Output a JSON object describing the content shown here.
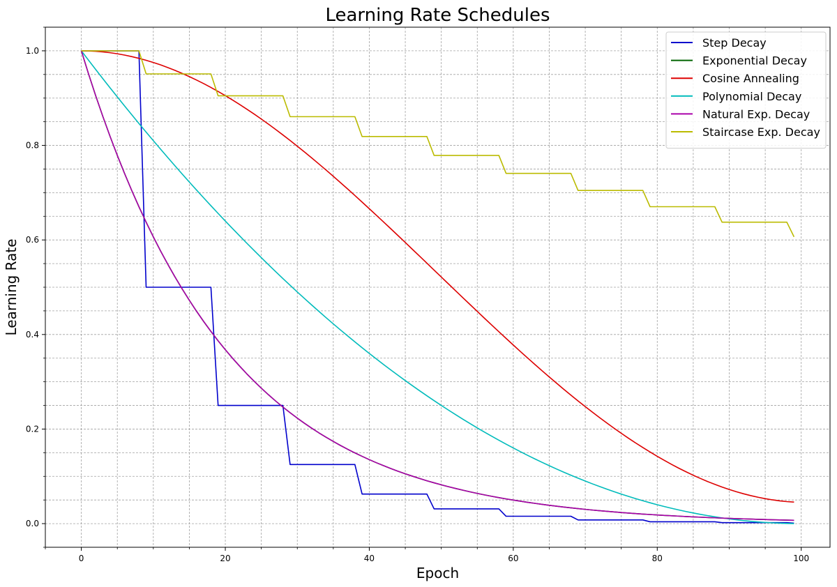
{
  "chart_data": {
    "type": "line",
    "title": "Learning Rate Schedules",
    "xlabel": "Epoch",
    "ylabel": "Learning Rate",
    "xlim": [
      -5,
      104
    ],
    "ylim": [
      -0.05,
      1.05
    ],
    "x_ticks": [
      0,
      20,
      40,
      60,
      80,
      100
    ],
    "y_ticks": [
      0.0,
      0.2,
      0.4,
      0.6,
      0.8,
      1.0
    ],
    "x_tick_labels": [
      "0",
      "20",
      "40",
      "60",
      "80",
      "100"
    ],
    "y_tick_labels": [
      "0.0",
      "0.2",
      "0.4",
      "0.6",
      "0.8",
      "1.0"
    ],
    "x_minor_step": 5,
    "y_minor_step": 0.05,
    "grid": true,
    "legend_position": "top-right",
    "x": [
      0,
      1,
      2,
      3,
      4,
      5,
      6,
      7,
      8,
      9,
      10,
      11,
      12,
      13,
      14,
      15,
      16,
      17,
      18,
      19,
      20,
      21,
      22,
      23,
      24,
      25,
      26,
      27,
      28,
      29,
      30,
      31,
      32,
      33,
      34,
      35,
      36,
      37,
      38,
      39,
      40,
      41,
      42,
      43,
      44,
      45,
      46,
      47,
      48,
      49,
      50,
      51,
      52,
      53,
      54,
      55,
      56,
      57,
      58,
      59,
      60,
      61,
      62,
      63,
      64,
      65,
      66,
      67,
      68,
      69,
      70,
      71,
      72,
      73,
      74,
      75,
      76,
      77,
      78,
      79,
      80,
      81,
      82,
      83,
      84,
      85,
      86,
      87,
      88,
      89,
      90,
      91,
      92,
      93,
      94,
      95,
      96,
      97,
      98,
      99
    ],
    "series": [
      {
        "name": "Step Decay",
        "color": "#0000cc",
        "values": [
          1.0,
          1.0,
          1.0,
          1.0,
          1.0,
          1.0,
          1.0,
          1.0,
          1.0,
          0.5,
          0.5,
          0.5,
          0.5,
          0.5,
          0.5,
          0.5,
          0.5,
          0.5,
          0.5,
          0.25,
          0.25,
          0.25,
          0.25,
          0.25,
          0.25,
          0.25,
          0.25,
          0.25,
          0.25,
          0.125,
          0.125,
          0.125,
          0.125,
          0.125,
          0.125,
          0.125,
          0.125,
          0.125,
          0.125,
          0.0625,
          0.0625,
          0.0625,
          0.0625,
          0.0625,
          0.0625,
          0.0625,
          0.0625,
          0.0625,
          0.0625,
          0.0312,
          0.0312,
          0.0312,
          0.0312,
          0.0312,
          0.0312,
          0.0312,
          0.0312,
          0.0312,
          0.0312,
          0.0156,
          0.0156,
          0.0156,
          0.0156,
          0.0156,
          0.0156,
          0.0156,
          0.0156,
          0.0156,
          0.0156,
          0.0078,
          0.0078,
          0.0078,
          0.0078,
          0.0078,
          0.0078,
          0.0078,
          0.0078,
          0.0078,
          0.0078,
          0.0039,
          0.0039,
          0.0039,
          0.0039,
          0.0039,
          0.0039,
          0.0039,
          0.0039,
          0.0039,
          0.0039,
          0.002,
          0.002,
          0.002,
          0.002,
          0.002,
          0.002,
          0.002,
          0.002,
          0.002,
          0.002,
          0.001
        ]
      },
      {
        "name": "Exponential Decay",
        "color": "#006400",
        "values": [
          1.0,
          0.9512,
          0.9048,
          0.8607,
          0.8187,
          0.7788,
          0.7408,
          0.7047,
          0.6703,
          0.6376,
          0.6065,
          0.5769,
          0.5488,
          0.522,
          0.4966,
          0.4724,
          0.4493,
          0.4274,
          0.4066,
          0.3867,
          0.3679,
          0.3499,
          0.3329,
          0.3166,
          0.3012,
          0.2865,
          0.2725,
          0.2592,
          0.2466,
          0.2346,
          0.2231,
          0.2122,
          0.2019,
          0.192,
          0.1827,
          0.1738,
          0.1653,
          0.1572,
          0.1496,
          0.1423,
          0.1353,
          0.1287,
          0.1225,
          0.1165,
          0.1108,
          0.1054,
          0.1003,
          0.0954,
          0.0907,
          0.0863,
          0.0821,
          0.0781,
          0.0743,
          0.0707,
          0.0672,
          0.0639,
          0.0608,
          0.0578,
          0.055,
          0.0523,
          0.0498,
          0.0474,
          0.045,
          0.0429,
          0.0408,
          0.0388,
          0.0369,
          0.0351,
          0.0334,
          0.0317,
          0.0302,
          0.0287,
          0.0273,
          0.026,
          0.0247,
          0.0235,
          0.0224,
          0.0213,
          0.0202,
          0.0193,
          0.0183,
          0.0174,
          0.0166,
          0.0158,
          0.015,
          0.0143,
          0.0136,
          0.0129,
          0.0123,
          0.0117,
          0.0111,
          0.0106,
          0.0101,
          0.0096,
          0.0091,
          0.0087,
          0.0082,
          0.0078,
          0.0074,
          0.0071
        ]
      },
      {
        "name": "Cosine Annealing",
        "color": "#dd0000",
        "values": [
          1.0,
          0.9998,
          0.999,
          0.9978,
          0.996,
          0.9938,
          0.991,
          0.9878,
          0.9841,
          0.98,
          0.9753,
          0.9703,
          0.9647,
          0.9587,
          0.9523,
          0.9455,
          0.9382,
          0.9306,
          0.9225,
          0.914,
          0.9052,
          0.896,
          0.8864,
          0.8765,
          0.8663,
          0.8557,
          0.8448,
          0.8336,
          0.8221,
          0.8104,
          0.7983,
          0.786,
          0.7735,
          0.7607,
          0.7478,
          0.7346,
          0.7212,
          0.7077,
          0.694,
          0.6801,
          0.6661,
          0.652,
          0.6378,
          0.6235,
          0.6091,
          0.5946,
          0.58,
          0.5655,
          0.5509,
          0.5362,
          0.5216,
          0.507,
          0.4924,
          0.4778,
          0.4633,
          0.4488,
          0.4344,
          0.4201,
          0.4059,
          0.3918,
          0.3778,
          0.3639,
          0.3502,
          0.3367,
          0.3233,
          0.3101,
          0.2972,
          0.2844,
          0.2718,
          0.2595,
          0.2475,
          0.2357,
          0.2241,
          0.2128,
          0.2018,
          0.1911,
          0.1807,
          0.1706,
          0.1609,
          0.1515,
          0.1424,
          0.1336,
          0.1252,
          0.1172,
          0.1096,
          0.1023,
          0.0955,
          0.089,
          0.083,
          0.0774,
          0.0722,
          0.0674,
          0.0631,
          0.0592,
          0.0558,
          0.0528,
          0.0503,
          0.0482,
          0.0466,
          0.0455
        ]
      },
      {
        "name": "Polynomial Decay",
        "color": "#00bbbb",
        "values": [
          1.0,
          0.9801,
          0.9604,
          0.9409,
          0.9216,
          0.9025,
          0.8836,
          0.8649,
          0.8464,
          0.8281,
          0.81,
          0.7921,
          0.7744,
          0.7569,
          0.7396,
          0.7225,
          0.7056,
          0.6889,
          0.6724,
          0.6561,
          0.64,
          0.6241,
          0.6084,
          0.5929,
          0.5776,
          0.5625,
          0.5476,
          0.5329,
          0.5184,
          0.5041,
          0.49,
          0.4761,
          0.4624,
          0.4489,
          0.4356,
          0.4225,
          0.4096,
          0.3969,
          0.3844,
          0.3721,
          0.36,
          0.3481,
          0.3364,
          0.3249,
          0.3136,
          0.3025,
          0.2916,
          0.2809,
          0.2704,
          0.2601,
          0.25,
          0.2401,
          0.2304,
          0.2209,
          0.2116,
          0.2025,
          0.1936,
          0.1849,
          0.1764,
          0.1681,
          0.16,
          0.1521,
          0.1444,
          0.1369,
          0.1296,
          0.1225,
          0.1156,
          0.1089,
          0.1024,
          0.0961,
          0.09,
          0.0841,
          0.0784,
          0.0729,
          0.0676,
          0.0625,
          0.0576,
          0.0529,
          0.0484,
          0.0441,
          0.04,
          0.0361,
          0.0324,
          0.0289,
          0.0256,
          0.0225,
          0.0196,
          0.0169,
          0.0144,
          0.0121,
          0.01,
          0.0081,
          0.0064,
          0.0049,
          0.0036,
          0.0025,
          0.0016,
          0.0009,
          0.0004,
          0.0001
        ]
      },
      {
        "name": "Natural Exp. Decay",
        "color": "#aa00aa",
        "values": [
          1.0,
          0.9512,
          0.9048,
          0.8607,
          0.8187,
          0.7788,
          0.7408,
          0.7047,
          0.6703,
          0.6376,
          0.6065,
          0.5769,
          0.5488,
          0.522,
          0.4966,
          0.4724,
          0.4493,
          0.4274,
          0.4066,
          0.3867,
          0.3679,
          0.3499,
          0.3329,
          0.3166,
          0.3012,
          0.2865,
          0.2725,
          0.2592,
          0.2466,
          0.2346,
          0.2231,
          0.2122,
          0.2019,
          0.192,
          0.1827,
          0.1738,
          0.1653,
          0.1572,
          0.1496,
          0.1423,
          0.1353,
          0.1287,
          0.1225,
          0.1165,
          0.1108,
          0.1054,
          0.1003,
          0.0954,
          0.0907,
          0.0863,
          0.0821,
          0.0781,
          0.0743,
          0.0707,
          0.0672,
          0.0639,
          0.0608,
          0.0578,
          0.055,
          0.0523,
          0.0498,
          0.0474,
          0.045,
          0.0429,
          0.0408,
          0.0388,
          0.0369,
          0.0351,
          0.0334,
          0.0317,
          0.0302,
          0.0287,
          0.0273,
          0.026,
          0.0247,
          0.0235,
          0.0224,
          0.0213,
          0.0202,
          0.0193,
          0.0183,
          0.0174,
          0.0166,
          0.0158,
          0.015,
          0.0143,
          0.0136,
          0.0129,
          0.0123,
          0.0117,
          0.0111,
          0.0106,
          0.0101,
          0.0096,
          0.0091,
          0.0087,
          0.0082,
          0.0078,
          0.0074,
          0.0071
        ]
      },
      {
        "name": "Staircase Exp. Decay",
        "color": "#bbbb00",
        "values": [
          1.0,
          1.0,
          1.0,
          1.0,
          1.0,
          1.0,
          1.0,
          1.0,
          1.0,
          0.9512,
          0.9512,
          0.9512,
          0.9512,
          0.9512,
          0.9512,
          0.9512,
          0.9512,
          0.9512,
          0.9512,
          0.9048,
          0.9048,
          0.9048,
          0.9048,
          0.9048,
          0.9048,
          0.9048,
          0.9048,
          0.9048,
          0.9048,
          0.8607,
          0.8607,
          0.8607,
          0.8607,
          0.8607,
          0.8607,
          0.8607,
          0.8607,
          0.8607,
          0.8607,
          0.8187,
          0.8187,
          0.8187,
          0.8187,
          0.8187,
          0.8187,
          0.8187,
          0.8187,
          0.8187,
          0.8187,
          0.7788,
          0.7788,
          0.7788,
          0.7788,
          0.7788,
          0.7788,
          0.7788,
          0.7788,
          0.7788,
          0.7788,
          0.7408,
          0.7408,
          0.7408,
          0.7408,
          0.7408,
          0.7408,
          0.7408,
          0.7408,
          0.7408,
          0.7408,
          0.7047,
          0.7047,
          0.7047,
          0.7047,
          0.7047,
          0.7047,
          0.7047,
          0.7047,
          0.7047,
          0.7047,
          0.6703,
          0.6703,
          0.6703,
          0.6703,
          0.6703,
          0.6703,
          0.6703,
          0.6703,
          0.6703,
          0.6703,
          0.6376,
          0.6376,
          0.6376,
          0.6376,
          0.6376,
          0.6376,
          0.6376,
          0.6376,
          0.6376,
          0.6376,
          0.6065
        ]
      }
    ]
  }
}
